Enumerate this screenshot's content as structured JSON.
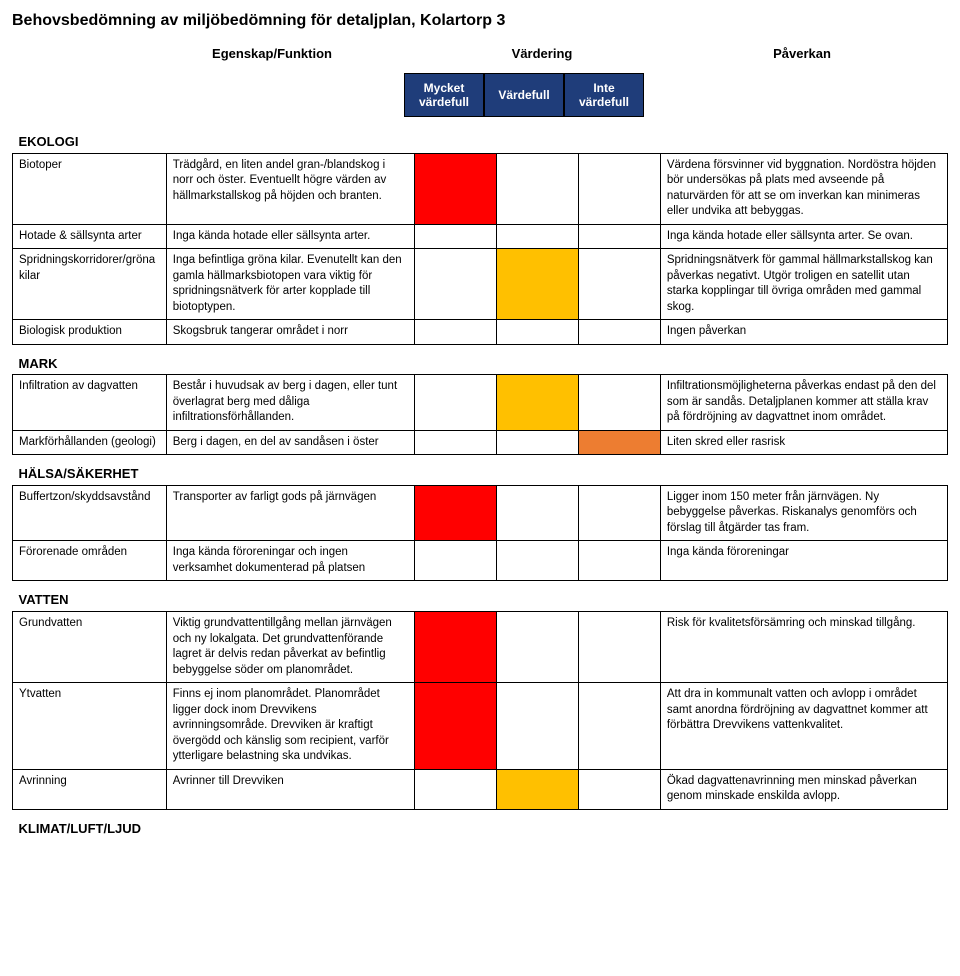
{
  "title": "Behovsbedömning av miljöbedömning för detaljplan, Kolartorp 3",
  "column_headers": {
    "c1": "Egenskap/Funktion",
    "c2": "Värdering",
    "c3": "Påverkan"
  },
  "rating_boxes": {
    "b1": {
      "label": "Mycket värdefull",
      "bg": "#1f3d7a"
    },
    "b2": {
      "label": "Värdefull",
      "bg": "#1f3d7a"
    },
    "b3": {
      "label": "Inte värdefull",
      "bg": "#1f3d7a"
    }
  },
  "colors": {
    "red": "#ff0000",
    "yellow": "#ffc000",
    "orange": "#ed7d31",
    "none": "#ffffff"
  },
  "sections": [
    {
      "name": "EKOLOGI",
      "rows": [
        {
          "label": "Biotoper",
          "desc": "Trädgård, en liten andel gran-/blandskog i norr och öster. Eventuellt högre värden av hällmarkstallskog på höjden och branten.",
          "r1": "red",
          "r2": "",
          "r3": "",
          "impact": "Värdena försvinner vid byggnation. Nordöstra höjden bör undersökas på plats med avseende på naturvärden för att se om inverkan kan minimeras eller undvika att bebyggas."
        },
        {
          "label": "Hotade & sällsynta arter",
          "desc": "Inga kända hotade eller sällsynta arter.",
          "r1": "",
          "r2": "",
          "r3": "",
          "impact": "Inga kända hotade eller sällsynta arter. Se ovan."
        },
        {
          "label": "Spridningskorridorer/gröna kilar",
          "desc": "Inga befintliga gröna kilar. Evenutellt kan den gamla hällmarksbiotopen vara viktig för spridningsnätverk för arter kopplade till biotoptypen.",
          "r1": "",
          "r2": "yellow",
          "r3": "",
          "impact": "Spridningsnätverk för gammal hällmarkstallskog kan påverkas negativt. Utgör troligen en satellit utan starka kopplingar till övriga områden med gammal skog."
        },
        {
          "label": "Biologisk produktion",
          "desc": "Skogsbruk tangerar området i norr",
          "r1": "",
          "r2": "",
          "r3": "",
          "impact": "Ingen påverkan"
        }
      ]
    },
    {
      "name": "MARK",
      "rows": [
        {
          "label": "Infiltration av dagvatten",
          "desc": "Består i huvudsak av berg i dagen, eller tunt överlagrat berg med dåliga infiltrationsförhållanden.",
          "r1": "",
          "r2": "yellow",
          "r3": "",
          "impact": "Infiltrationsmöjligheterna påverkas endast på den del som är sandås. Detaljplanen kommer att ställa krav på fördröjning av dagvattnet inom området."
        },
        {
          "label": "Markförhållanden (geologi)",
          "desc": "Berg i dagen, en del av sandåsen i öster",
          "r1": "",
          "r2": "",
          "r3": "orange",
          "impact": "Liten skred eller rasrisk"
        }
      ]
    },
    {
      "name": "HÄLSA/SÄKERHET",
      "rows": [
        {
          "label": "Buffertzon/skyddsavstånd",
          "desc": "Transporter av farligt gods på järnvägen",
          "r1": "red",
          "r2": "",
          "r3": "",
          "impact": "Ligger inom 150 meter från järnvägen. Ny bebyggelse påverkas. Riskanalys genomförs och förslag till åtgärder tas fram."
        },
        {
          "label": "Förorenade områden",
          "desc": "Inga kända föroreningar och ingen verksamhet dokumenterad på platsen",
          "r1": "",
          "r2": "",
          "r3": "",
          "impact": "Inga kända föroreningar"
        }
      ]
    },
    {
      "name": "VATTEN",
      "rows": [
        {
          "label": "Grundvatten",
          "desc": "Viktig grundvattentillgång mellan järnvägen och ny lokalgata. Det grundvattenförande lagret är delvis redan påverkat av befintlig bebyggelse söder om planområdet.",
          "r1": "red",
          "r2": "",
          "r3": "",
          "impact": "Risk för kvalitetsförsämring och minskad tillgång."
        },
        {
          "label": "Ytvatten",
          "desc": "Finns ej inom planområdet. Planområdet ligger dock inom Drevvikens avrinningsområde. Drevviken är kraftigt övergödd och känslig som recipient, varför ytterligare belastning ska undvikas.",
          "r1": "red",
          "r2": "",
          "r3": "",
          "impact": "Att dra in kommunalt vatten och avlopp i området samt anordna fördröjning av dagvattnet kommer att förbättra Drevvikens vattenkvalitet."
        },
        {
          "label": "Avrinning",
          "desc": "Avrinner till Drevviken",
          "r1": "",
          "r2": "yellow",
          "r3": "",
          "impact": "Ökad dagvattenavrinning men minskad påverkan genom minskade enskilda avlopp."
        }
      ]
    },
    {
      "name": "KLIMAT/LUFT/LJUD",
      "rows": []
    }
  ]
}
